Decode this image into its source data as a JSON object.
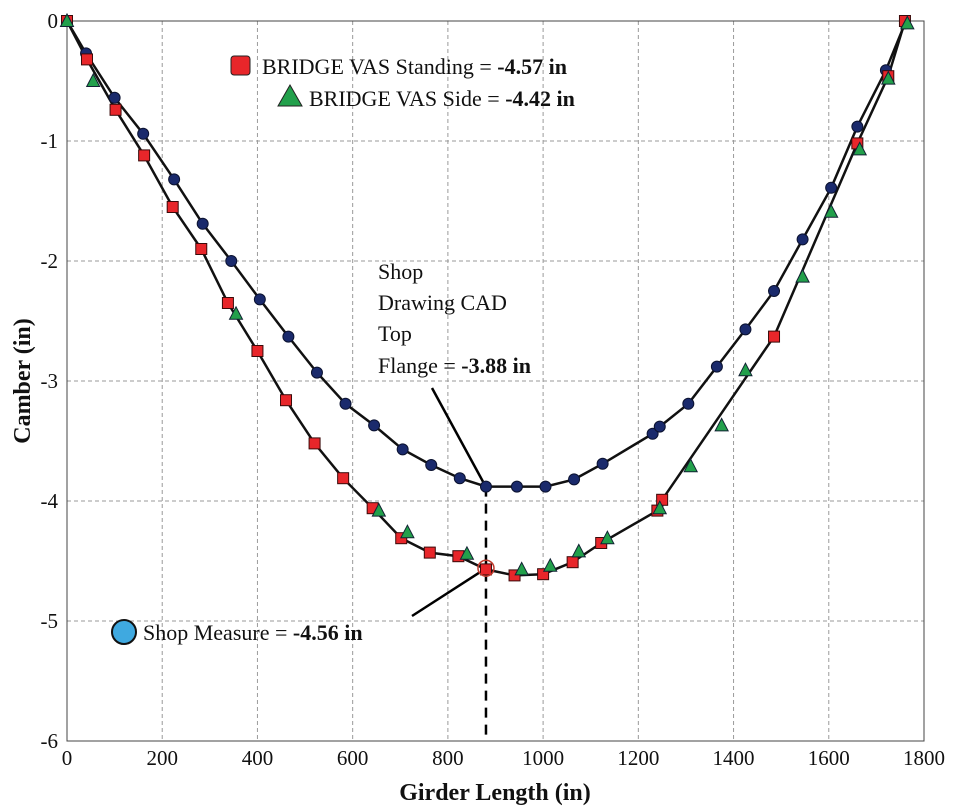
{
  "chart_data": {
    "type": "line",
    "xlabel": "Girder Length (in)",
    "ylabel": "Camber (in)",
    "xlim": [
      0,
      1800
    ],
    "ylim": [
      -6,
      0
    ],
    "x_ticks": [
      "0",
      "200",
      "400",
      "600",
      "800",
      "1000",
      "1200",
      "1400",
      "1600",
      "1800"
    ],
    "y_ticks": [
      "0",
      "-1",
      "-2",
      "-3",
      "-4",
      "-5",
      "-6"
    ],
    "grid": true,
    "series": [
      {
        "key": "cad",
        "marker": "circle-navy",
        "color": "#1a2a6c",
        "x": [
          0,
          40,
          100,
          160,
          225,
          285,
          345,
          405,
          465,
          525,
          585,
          645,
          705,
          765,
          825,
          880,
          945,
          1005,
          1065,
          1125,
          1230,
          1245,
          1305,
          1365,
          1425,
          1485,
          1545,
          1605,
          1660,
          1720,
          1760
        ],
        "y": [
          0,
          -0.27,
          -0.64,
          -0.94,
          -1.32,
          -1.69,
          -2.0,
          -2.32,
          -2.63,
          -2.93,
          -3.19,
          -3.37,
          -3.57,
          -3.7,
          -3.81,
          -3.88,
          -3.88,
          -3.88,
          -3.82,
          -3.69,
          -3.44,
          -3.38,
          -3.19,
          -2.88,
          -2.57,
          -2.25,
          -1.82,
          -1.39,
          -0.88,
          -0.41,
          -0.02
        ]
      },
      {
        "key": "standing",
        "marker": "square-red",
        "color": "#e8262a",
        "x": [
          0,
          42,
          102,
          162,
          222,
          282,
          338,
          400,
          460,
          520,
          580,
          642,
          702,
          762,
          822,
          880,
          940,
          1000,
          1062,
          1122,
          1240,
          1250,
          1485,
          1660,
          1725,
          1760
        ],
        "y": [
          0,
          -0.32,
          -0.74,
          -1.12,
          -1.55,
          -1.9,
          -2.35,
          -2.75,
          -3.16,
          -3.52,
          -3.81,
          -4.06,
          -4.31,
          -4.43,
          -4.46,
          -4.57,
          -4.62,
          -4.61,
          -4.51,
          -4.35,
          -4.08,
          -3.99,
          -2.63,
          -1.02,
          -0.46,
          0
        ]
      },
      {
        "key": "side",
        "marker": "triangle-green",
        "color": "#22a04b",
        "x": [
          0,
          55,
          355,
          655,
          715,
          840,
          955,
          1015,
          1075,
          1135,
          1245,
          1310,
          1375,
          1425,
          1545,
          1605,
          1665,
          1725,
          1765
        ],
        "y": [
          0,
          -0.5,
          -2.44,
          -4.08,
          -4.26,
          -4.44,
          -4.57,
          -4.54,
          -4.42,
          -4.31,
          -4.06,
          -3.71,
          -3.37,
          -2.91,
          -2.13,
          -1.59,
          -1.07,
          -0.48,
          -0.02
        ]
      }
    ],
    "legend": {
      "standing_text": "BRIDGE VAS Standing = ",
      "standing_value": "-4.57 in",
      "side_text": "BRIDGE VAS Side = ",
      "side_value": "-4.42 in"
    },
    "annotations": {
      "cad_lines": [
        "Shop",
        "Drawing CAD",
        "Top"
      ],
      "cad_last_text": "Flange = ",
      "cad_value": "-3.88 in",
      "shop_text": "Shop Measure = ",
      "shop_value": "-4.56 in",
      "shop_point": {
        "x": 880,
        "y": -4.56
      },
      "shop_color": "#3fa9e0"
    }
  }
}
